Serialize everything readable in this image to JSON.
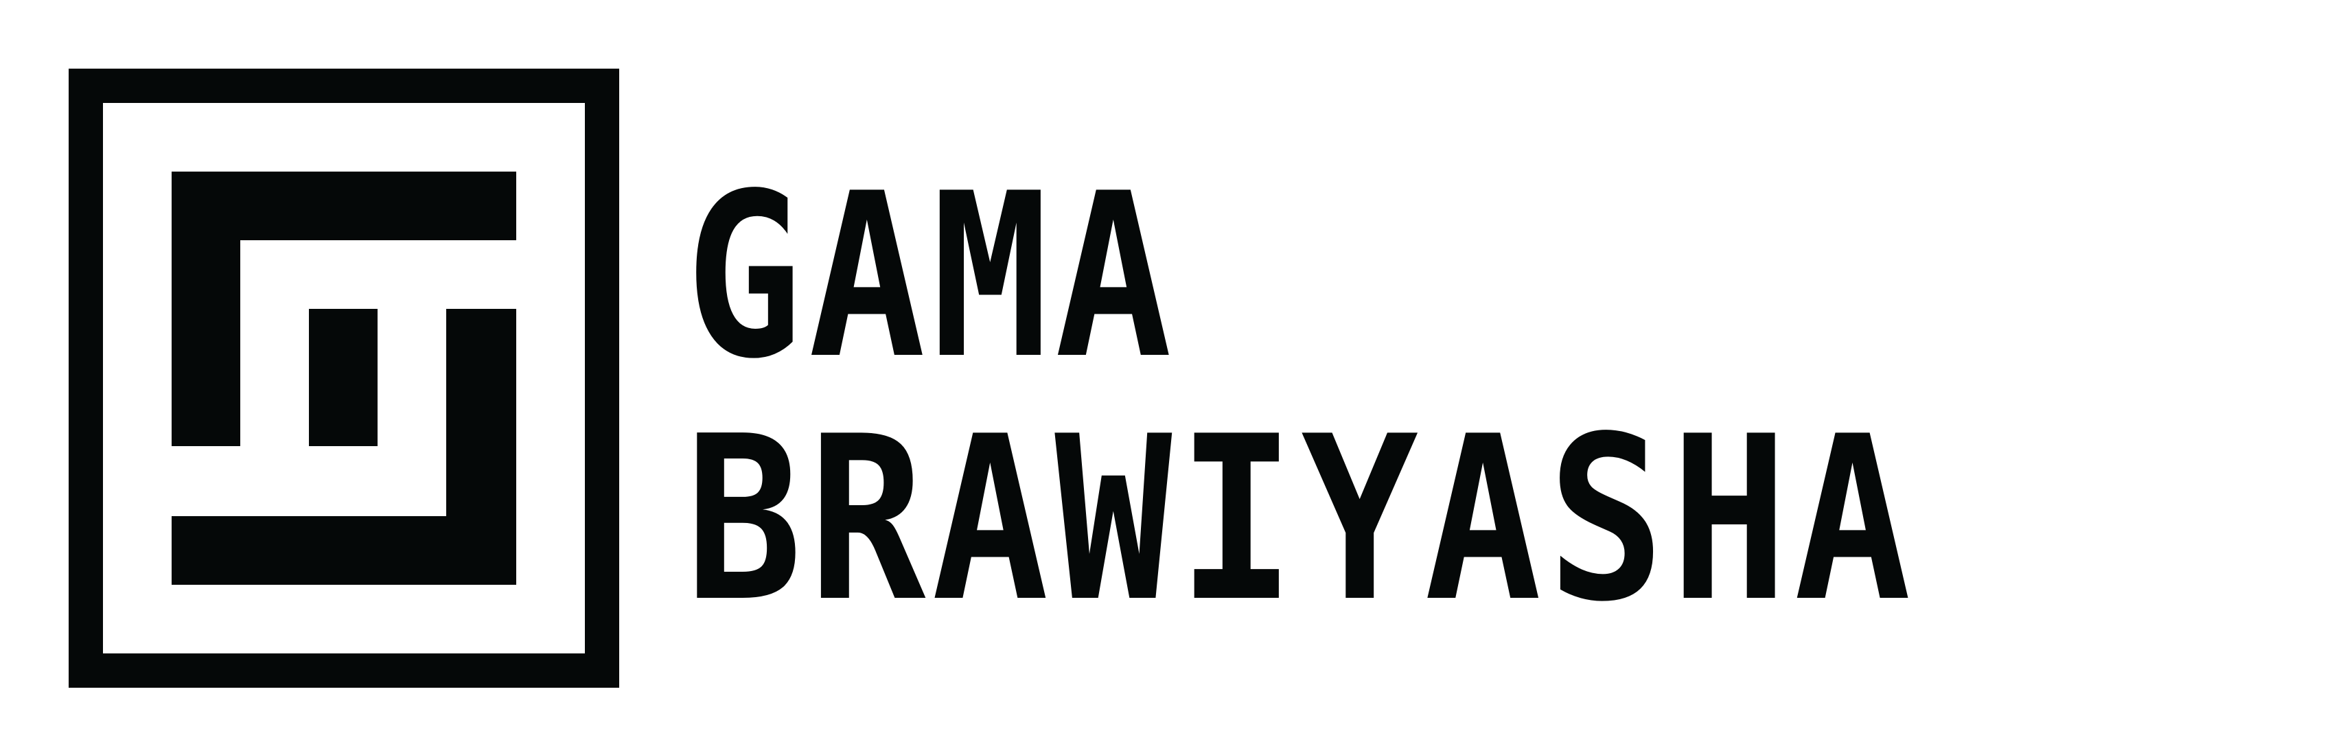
{
  "logo": {
    "line1": "GAMA",
    "line2": "BRAWIYASHA",
    "mark_icon": "square-glyph-icon"
  },
  "colors": {
    "ink": "#050808",
    "background": "#ffffff"
  }
}
